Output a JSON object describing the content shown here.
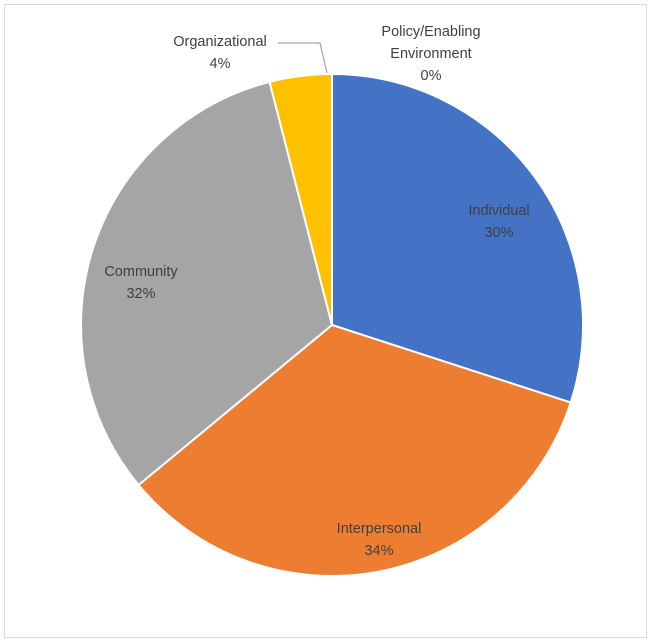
{
  "chart_data": {
    "type": "pie",
    "title": "",
    "categories": [
      "Individual",
      "Interpersonal",
      "Community",
      "Organizational",
      "Policy/Enabling Environment"
    ],
    "values": [
      30,
      34,
      32,
      4,
      0
    ],
    "value_labels": [
      "30%",
      "34%",
      "32%",
      "4%",
      "0%"
    ],
    "colors": [
      "#4472c4",
      "#ed7d31",
      "#a5a5a5",
      "#ffc000",
      "#5b9bd5"
    ],
    "start_angle": "12 o'clock",
    "direction": "clockwise",
    "legend": "none",
    "data_labels": "category name and percentage"
  }
}
